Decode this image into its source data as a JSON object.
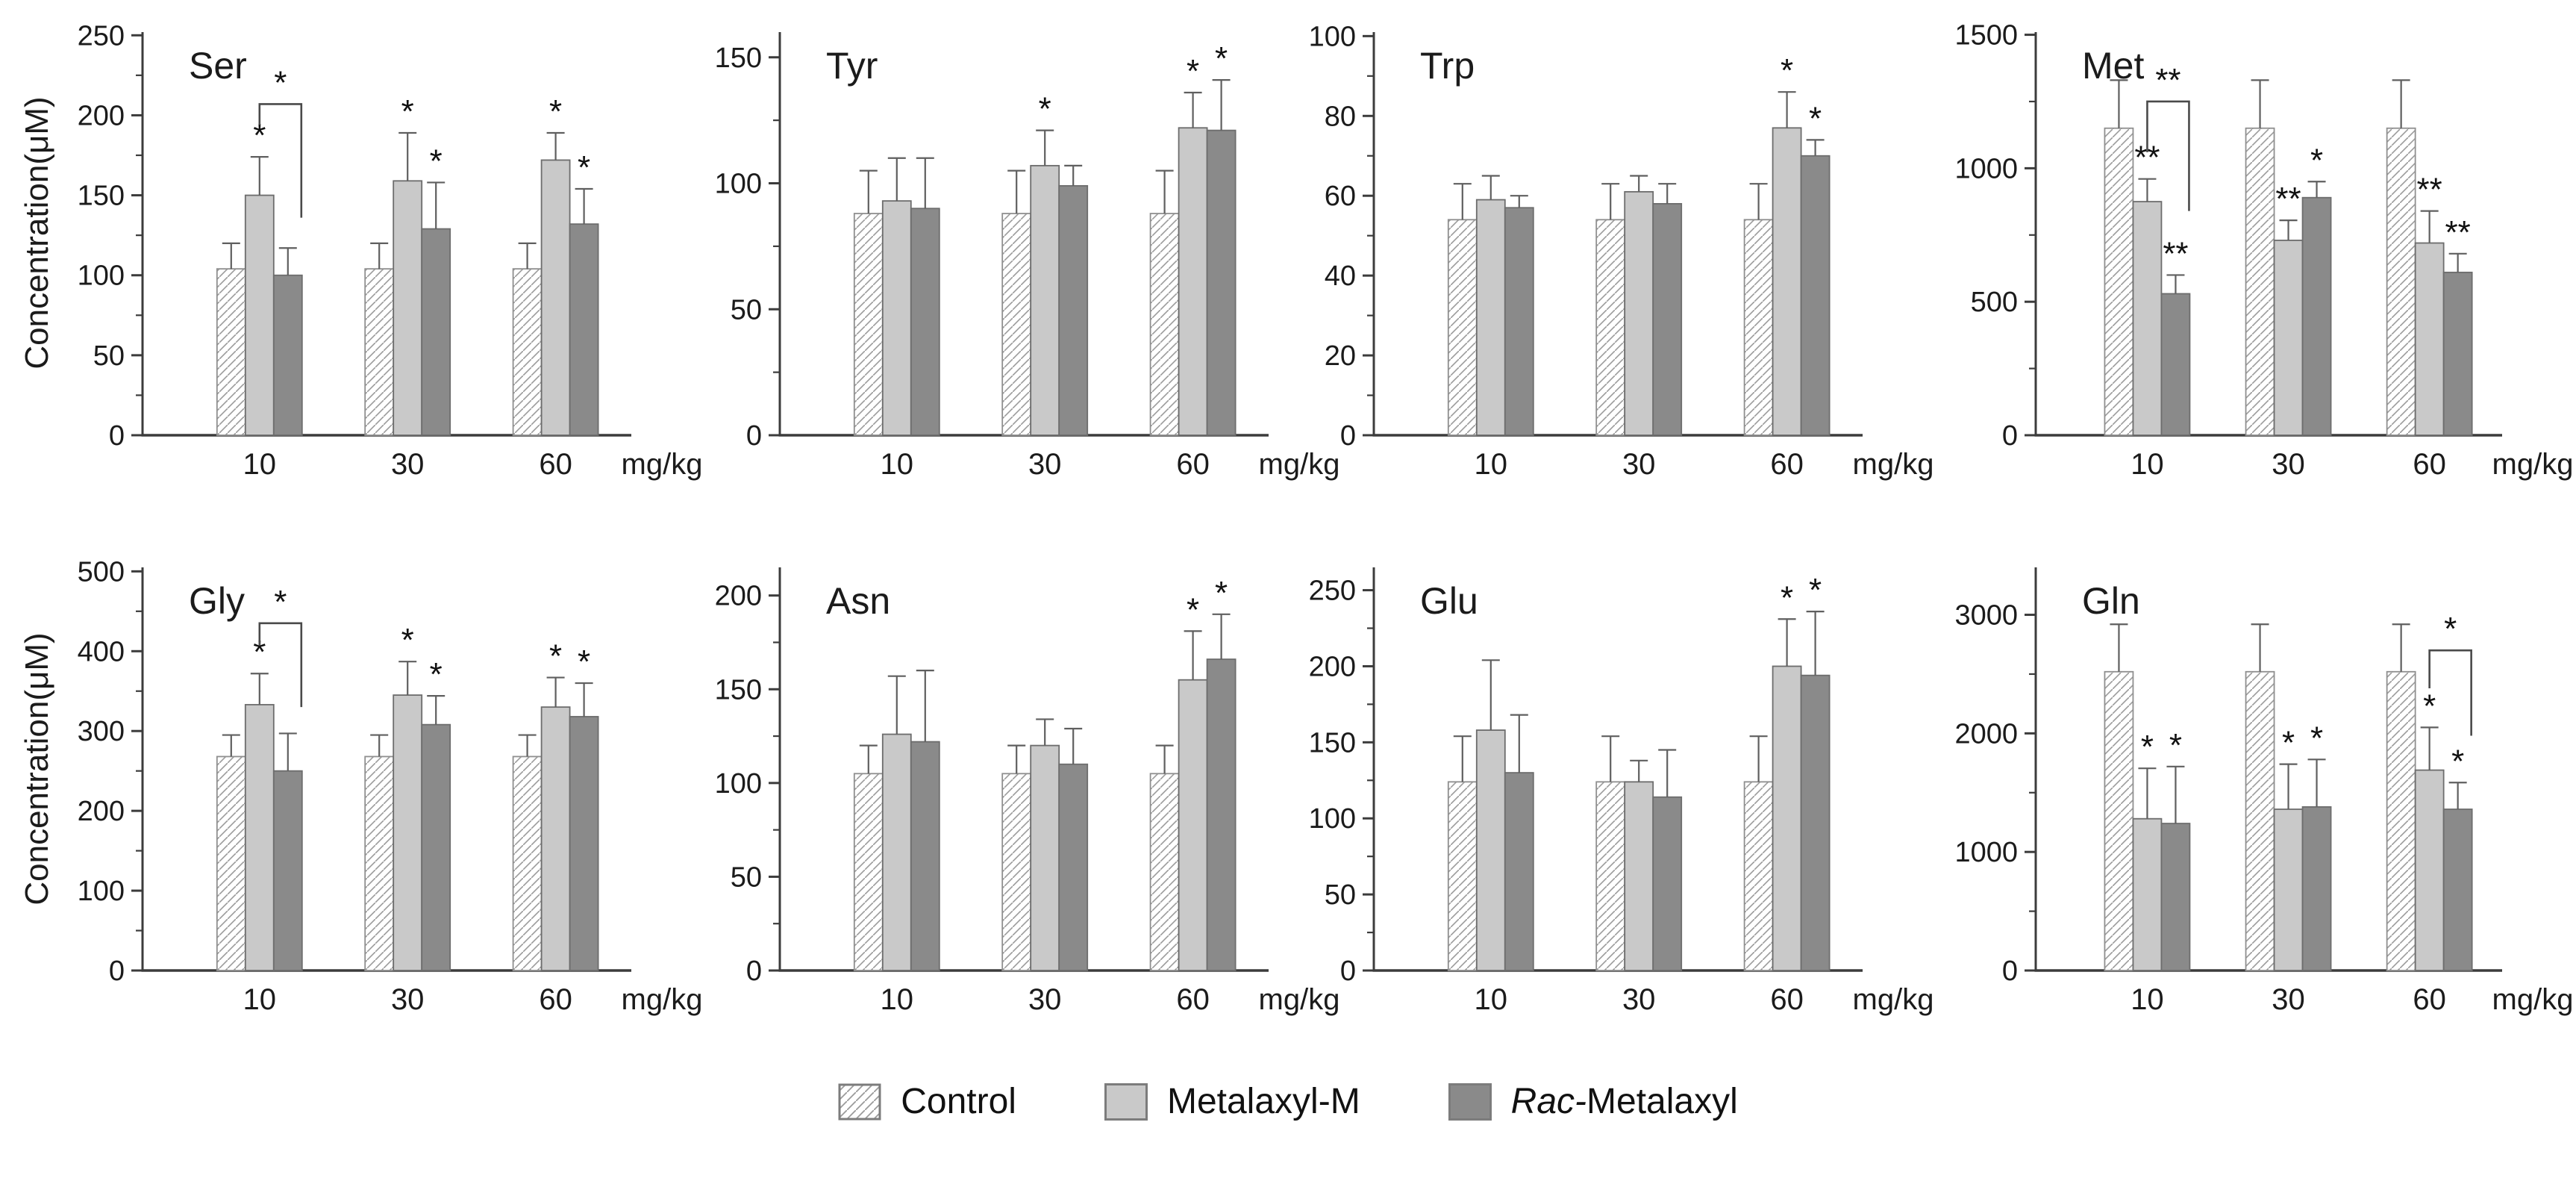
{
  "figure": {
    "ylabel": "Concentration(μM)",
    "x_unit_label": "mg/kg",
    "doses": [
      "10",
      "30",
      "60"
    ],
    "series_names": [
      "Control",
      "Metalaxyl-M",
      "Rac-Metalaxyl"
    ],
    "colors": {
      "background": "#ffffff",
      "axis": "#3c3c3c",
      "text": "#1b1b1b",
      "control_fill": "#ffffff",
      "control_hatch": "#9b9b9b",
      "control_border": "#8f8f8f",
      "metalaxyl_m_fill": "#c9c9c9",
      "rac_metalaxyl_fill": "#8a8a8a",
      "bar_border": "#6d6d6d",
      "error_bar": "#5f5f5f",
      "significance": "#111111"
    }
  },
  "legend": [
    {
      "label": "Control",
      "swatch": "hatched"
    },
    {
      "label": "Metalaxyl-M",
      "swatch": "light-gray"
    },
    {
      "italic": "Rac-",
      "label": "Metalaxyl",
      "swatch": "dark-gray"
    }
  ],
  "chart_data": [
    {
      "type": "bar",
      "title": "Ser",
      "row": 0,
      "col": 0,
      "show_ylabel": true,
      "ylabel": "Concentration(μM)",
      "xlabel": "mg/kg",
      "ylim": [
        0,
        252
      ],
      "yticks": [
        0,
        50,
        100,
        150,
        200,
        250
      ],
      "minor_step": 25,
      "categories": [
        "10",
        "30",
        "60"
      ],
      "series": [
        {
          "name": "Control",
          "values": [
            104,
            104,
            104
          ],
          "errors": [
            16,
            16,
            16
          ],
          "sig": [
            "",
            "",
            ""
          ]
        },
        {
          "name": "Metalaxyl-M",
          "values": [
            150,
            159,
            172
          ],
          "errors": [
            24,
            30,
            17
          ],
          "sig": [
            "*",
            "*",
            "*"
          ]
        },
        {
          "name": "Rac-Metalaxyl",
          "values": [
            100,
            129,
            132
          ],
          "errors": [
            17,
            29,
            22
          ],
          "sig": [
            "",
            "*",
            "*"
          ]
        }
      ],
      "bracket": {
        "group": 0,
        "label": "*",
        "top": 207,
        "left_drop": 194,
        "right_drop": 136
      }
    },
    {
      "type": "bar",
      "title": "Tyr",
      "row": 0,
      "col": 1,
      "show_ylabel": false,
      "xlabel": "mg/kg",
      "ylim": [
        0,
        160
      ],
      "yticks": [
        0,
        50,
        100,
        150
      ],
      "minor_step": 25,
      "categories": [
        "10",
        "30",
        "60"
      ],
      "series": [
        {
          "name": "Control",
          "values": [
            88,
            88,
            88
          ],
          "errors": [
            17,
            17,
            17
          ],
          "sig": [
            "",
            "",
            ""
          ]
        },
        {
          "name": "Metalaxyl-M",
          "values": [
            93,
            107,
            122
          ],
          "errors": [
            17,
            14,
            14
          ],
          "sig": [
            "",
            "*",
            "*"
          ]
        },
        {
          "name": "Rac-Metalaxyl",
          "values": [
            90,
            99,
            121
          ],
          "errors": [
            20,
            8,
            20
          ],
          "sig": [
            "",
            "",
            "*"
          ]
        }
      ],
      "bracket": null
    },
    {
      "type": "bar",
      "title": "Trp",
      "row": 0,
      "col": 2,
      "show_ylabel": false,
      "xlabel": "mg/kg",
      "ylim": [
        0,
        101
      ],
      "yticks": [
        0,
        20,
        40,
        60,
        80,
        100
      ],
      "minor_step": 10,
      "categories": [
        "10",
        "30",
        "60"
      ],
      "series": [
        {
          "name": "Control",
          "values": [
            54,
            54,
            54
          ],
          "errors": [
            9,
            9,
            9
          ],
          "sig": [
            "",
            "",
            ""
          ]
        },
        {
          "name": "Metalaxyl-M",
          "values": [
            59,
            61,
            77
          ],
          "errors": [
            6,
            4,
            9
          ],
          "sig": [
            "",
            "",
            "*"
          ]
        },
        {
          "name": "Rac-Metalaxyl",
          "values": [
            57,
            58,
            70
          ],
          "errors": [
            3,
            5,
            4
          ],
          "sig": [
            "",
            "",
            "*"
          ]
        }
      ],
      "bracket": null
    },
    {
      "type": "bar",
      "title": "Met",
      "row": 0,
      "col": 3,
      "show_ylabel": false,
      "xlabel": "mg/kg",
      "ylim": [
        0,
        1510
      ],
      "yticks": [
        0,
        500,
        1000,
        1500
      ],
      "minor_step": 250,
      "categories": [
        "10",
        "30",
        "60"
      ],
      "series": [
        {
          "name": "Control",
          "values": [
            1150,
            1150,
            1150
          ],
          "errors": [
            180,
            180,
            180
          ],
          "sig": [
            "",
            "",
            ""
          ]
        },
        {
          "name": "Metalaxyl-M",
          "values": [
            875,
            730,
            720
          ],
          "errors": [
            85,
            75,
            120
          ],
          "sig": [
            "**",
            "**",
            "**"
          ]
        },
        {
          "name": "Rac-Metalaxyl",
          "values": [
            530,
            890,
            610
          ],
          "errors": [
            70,
            60,
            70
          ],
          "sig": [
            "**",
            "*",
            "**"
          ]
        }
      ],
      "bracket": {
        "group": 0,
        "label": "**",
        "top": 1250,
        "left_drop": 1060,
        "right_drop": 840
      }
    },
    {
      "type": "bar",
      "title": "Gly",
      "row": 1,
      "col": 0,
      "show_ylabel": true,
      "ylabel": "Concentration(μM)",
      "xlabel": "mg/kg",
      "ylim": [
        0,
        505
      ],
      "yticks": [
        0,
        100,
        200,
        300,
        400,
        500
      ],
      "minor_step": 50,
      "categories": [
        "10",
        "30",
        "60"
      ],
      "series": [
        {
          "name": "Control",
          "values": [
            268,
            268,
            268
          ],
          "errors": [
            27,
            27,
            27
          ],
          "sig": [
            "",
            "",
            ""
          ]
        },
        {
          "name": "Metalaxyl-M",
          "values": [
            333,
            345,
            330
          ],
          "errors": [
            39,
            42,
            37
          ],
          "sig": [
            "*",
            "*",
            "*"
          ]
        },
        {
          "name": "Rac-Metalaxyl",
          "values": [
            250,
            308,
            318
          ],
          "errors": [
            47,
            36,
            42
          ],
          "sig": [
            "",
            "*",
            "*"
          ]
        }
      ],
      "bracket": {
        "group": 0,
        "label": "*",
        "top": 435,
        "left_drop": 407,
        "right_drop": 330
      }
    },
    {
      "type": "bar",
      "title": "Asn",
      "row": 1,
      "col": 1,
      "show_ylabel": false,
      "xlabel": "mg/kg",
      "ylim": [
        0,
        215
      ],
      "yticks": [
        0,
        50,
        100,
        150,
        200
      ],
      "minor_step": 25,
      "categories": [
        "10",
        "30",
        "60"
      ],
      "series": [
        {
          "name": "Control",
          "values": [
            105,
            105,
            105
          ],
          "errors": [
            15,
            15,
            15
          ],
          "sig": [
            "",
            "",
            ""
          ]
        },
        {
          "name": "Metalaxyl-M",
          "values": [
            126,
            120,
            155
          ],
          "errors": [
            31,
            14,
            26
          ],
          "sig": [
            "",
            "",
            "*"
          ]
        },
        {
          "name": "Rac-Metalaxyl",
          "values": [
            122,
            110,
            166
          ],
          "errors": [
            38,
            19,
            24
          ],
          "sig": [
            "",
            "",
            "*"
          ]
        }
      ],
      "bracket": null
    },
    {
      "type": "bar",
      "title": "Glu",
      "row": 1,
      "col": 2,
      "show_ylabel": false,
      "xlabel": "mg/kg",
      "ylim": [
        0,
        265
      ],
      "yticks": [
        0,
        50,
        100,
        150,
        200,
        250
      ],
      "minor_step": 25,
      "categories": [
        "10",
        "30",
        "60"
      ],
      "series": [
        {
          "name": "Control",
          "values": [
            124,
            124,
            124
          ],
          "errors": [
            30,
            30,
            30
          ],
          "sig": [
            "",
            "",
            ""
          ]
        },
        {
          "name": "Metalaxyl-M",
          "values": [
            158,
            124,
            200
          ],
          "errors": [
            46,
            14,
            31
          ],
          "sig": [
            "",
            "",
            "*"
          ]
        },
        {
          "name": "Rac-Metalaxyl",
          "values": [
            130,
            114,
            194
          ],
          "errors": [
            38,
            31,
            42
          ],
          "sig": [
            "",
            "",
            "*"
          ]
        }
      ],
      "bracket": null
    },
    {
      "type": "bar",
      "title": "Gln",
      "row": 1,
      "col": 3,
      "show_ylabel": false,
      "xlabel": "mg/kg",
      "ylim": [
        0,
        3400
      ],
      "yticks": [
        0,
        1000,
        2000,
        3000
      ],
      "minor_step": 500,
      "categories": [
        "10",
        "30",
        "60"
      ],
      "series": [
        {
          "name": "Control",
          "values": [
            2520,
            2520,
            2520
          ],
          "errors": [
            400,
            400,
            400
          ],
          "sig": [
            "",
            "",
            ""
          ]
        },
        {
          "name": "Metalaxyl-M",
          "values": [
            1280,
            1360,
            1690
          ],
          "errors": [
            425,
            380,
            360
          ],
          "sig": [
            "*",
            "*",
            "*"
          ]
        },
        {
          "name": "Rac-Metalaxyl",
          "values": [
            1240,
            1380,
            1360
          ],
          "errors": [
            480,
            400,
            225
          ],
          "sig": [
            "*",
            "*",
            "*"
          ]
        }
      ],
      "bracket": {
        "group": 2,
        "label": "*",
        "top": 2700,
        "left_drop": 2380,
        "right_drop": 1980
      }
    }
  ]
}
